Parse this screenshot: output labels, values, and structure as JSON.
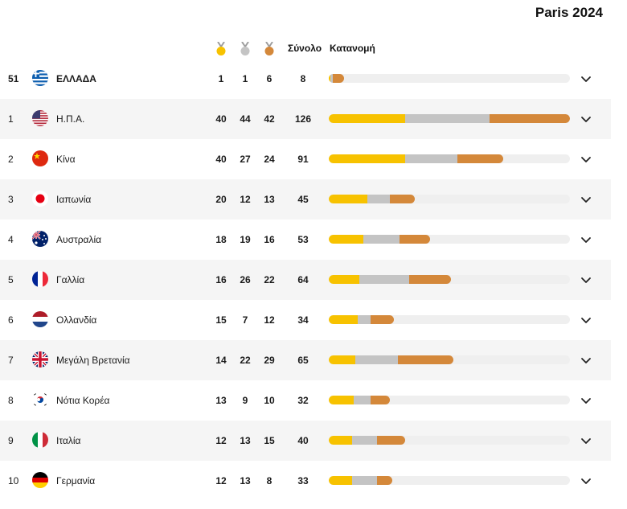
{
  "event": {
    "title": "Paris 2024"
  },
  "header": {
    "total_label": "Σύνολο",
    "breakdown_label": "Κατανομή"
  },
  "colors": {
    "gold": "#f7c200",
    "silver": "#c4c4c4",
    "bronze": "#d4883a",
    "track": "#efefef"
  },
  "bar_scale_max": 126,
  "rows": [
    {
      "rank": "51",
      "country": "ΕΛΛΑΔΑ",
      "flag": "greece-flag-icon",
      "gold": 1,
      "silver": 1,
      "bronze": 6,
      "total": 8
    },
    {
      "rank": "1",
      "country": "Η.Π.Α.",
      "flag": "usa-flag-icon",
      "gold": 40,
      "silver": 44,
      "bronze": 42,
      "total": 126
    },
    {
      "rank": "2",
      "country": "Κίνα",
      "flag": "china-flag-icon",
      "gold": 40,
      "silver": 27,
      "bronze": 24,
      "total": 91
    },
    {
      "rank": "3",
      "country": "Ιαπωνία",
      "flag": "japan-flag-icon",
      "gold": 20,
      "silver": 12,
      "bronze": 13,
      "total": 45
    },
    {
      "rank": "4",
      "country": "Αυστραλία",
      "flag": "australia-flag-icon",
      "gold": 18,
      "silver": 19,
      "bronze": 16,
      "total": 53
    },
    {
      "rank": "5",
      "country": "Γαλλία",
      "flag": "france-flag-icon",
      "gold": 16,
      "silver": 26,
      "bronze": 22,
      "total": 64
    },
    {
      "rank": "6",
      "country": "Ολλανδία",
      "flag": "netherlands-flag-icon",
      "gold": 15,
      "silver": 7,
      "bronze": 12,
      "total": 34
    },
    {
      "rank": "7",
      "country": "Μεγάλη Βρετανία",
      "flag": "great-britain-flag-icon",
      "gold": 14,
      "silver": 22,
      "bronze": 29,
      "total": 65
    },
    {
      "rank": "8",
      "country": "Νότια Κορέα",
      "flag": "south-korea-flag-icon",
      "gold": 13,
      "silver": 9,
      "bronze": 10,
      "total": 32
    },
    {
      "rank": "9",
      "country": "Ιταλία",
      "flag": "italy-flag-icon",
      "gold": 12,
      "silver": 13,
      "bronze": 15,
      "total": 40
    },
    {
      "rank": "10",
      "country": "Γερμανία",
      "flag": "germany-flag-icon",
      "gold": 12,
      "silver": 13,
      "bronze": 8,
      "total": 33
    }
  ]
}
